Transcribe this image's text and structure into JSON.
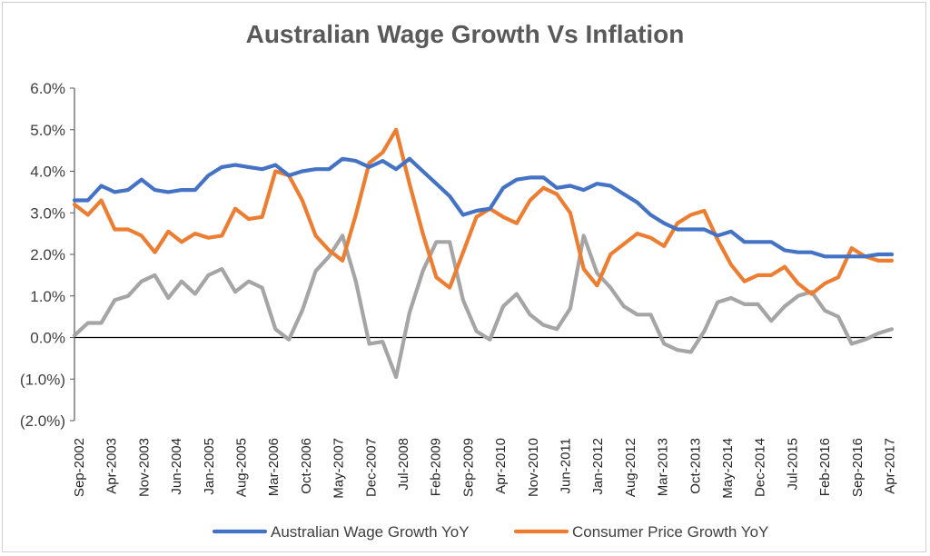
{
  "chart_data": {
    "type": "line",
    "title": "Australian Wage Growth  Vs Inflation",
    "xlabel": "",
    "ylabel": "",
    "ylim": [
      -2.0,
      6.0
    ],
    "yticks": [
      "6.0%",
      "5.0%",
      "4.0%",
      "3.0%",
      "2.0%",
      "1.0%",
      "0.0%",
      "(1.0%)",
      "(2.0%)"
    ],
    "ytick_values": [
      6,
      5,
      4,
      3,
      2,
      1,
      0,
      -1,
      -2
    ],
    "xtick_labels": [
      "Sep-2002",
      "Apr-2003",
      "Nov-2003",
      "Jun-2004",
      "Jan-2005",
      "Aug-2005",
      "Mar-2006",
      "Oct-2006",
      "May-2007",
      "Dec-2007",
      "Jul-2008",
      "Feb-2009",
      "Sep-2009",
      "Apr-2010",
      "Nov-2010",
      "Jun-2011",
      "Jan-2012",
      "Aug-2012",
      "Mar-2013",
      "Oct-2013",
      "May-2014",
      "Dec-2014",
      "Jul-2015",
      "Feb-2016",
      "Sep-2016",
      "Apr-2017"
    ],
    "x_note": "quarterly points from Sep-2002 to Dec-2017",
    "legend_position": "bottom",
    "grid": false,
    "series": [
      {
        "name": "Australian Wage Growth YoY",
        "color": "#4472C4",
        "values": [
          3.3,
          3.3,
          3.65,
          3.5,
          3.55,
          3.8,
          3.55,
          3.5,
          3.55,
          3.55,
          3.9,
          4.1,
          4.15,
          4.1,
          4.05,
          4.15,
          3.9,
          4.0,
          4.05,
          4.05,
          4.3,
          4.25,
          4.1,
          4.25,
          4.05,
          4.3,
          4.0,
          3.7,
          3.4,
          2.95,
          3.05,
          3.1,
          3.6,
          3.8,
          3.85,
          3.85,
          3.6,
          3.65,
          3.55,
          3.7,
          3.65,
          3.45,
          3.25,
          2.95,
          2.75,
          2.6,
          2.6,
          2.6,
          2.45,
          2.55,
          2.3,
          2.3,
          2.3,
          2.1,
          2.05,
          2.05,
          1.95,
          1.95,
          1.95,
          1.95,
          2.0,
          2.0
        ]
      },
      {
        "name": "Consumer Price Growth YoY",
        "color": "#ED7D31",
        "values": [
          3.2,
          2.95,
          3.3,
          2.6,
          2.6,
          2.45,
          2.05,
          2.55,
          2.3,
          2.5,
          2.4,
          2.45,
          3.1,
          2.85,
          2.9,
          4.0,
          3.9,
          3.3,
          2.45,
          2.1,
          1.85,
          2.95,
          4.2,
          4.45,
          5.0,
          3.7,
          2.5,
          1.45,
          1.2,
          2.05,
          2.9,
          3.1,
          2.9,
          2.75,
          3.3,
          3.6,
          3.45,
          3.0,
          1.65,
          1.25,
          2.0,
          2.25,
          2.5,
          2.4,
          2.2,
          2.75,
          2.95,
          3.05,
          2.35,
          1.75,
          1.35,
          1.5,
          1.5,
          1.7,
          1.3,
          1.05,
          1.3,
          1.45,
          2.15,
          1.95,
          1.85,
          1.85
        ]
      },
      {
        "name": "",
        "color": "#A5A5A5",
        "values": [
          0.05,
          0.35,
          0.35,
          0.9,
          1.0,
          1.35,
          1.5,
          0.95,
          1.35,
          1.05,
          1.5,
          1.65,
          1.1,
          1.35,
          1.2,
          0.2,
          -0.05,
          0.65,
          1.6,
          1.95,
          2.45,
          1.35,
          -0.15,
          -0.1,
          -0.95,
          0.6,
          1.6,
          2.3,
          2.3,
          0.9,
          0.15,
          -0.05,
          0.75,
          1.05,
          0.55,
          0.3,
          0.2,
          0.7,
          2.45,
          1.55,
          1.2,
          0.75,
          0.55,
          0.55,
          -0.15,
          -0.3,
          -0.35,
          0.15,
          0.85,
          0.95,
          0.8,
          0.8,
          0.4,
          0.75,
          1.0,
          1.1,
          0.65,
          0.5,
          -0.15,
          -0.05,
          0.1,
          0.2
        ]
      }
    ]
  }
}
